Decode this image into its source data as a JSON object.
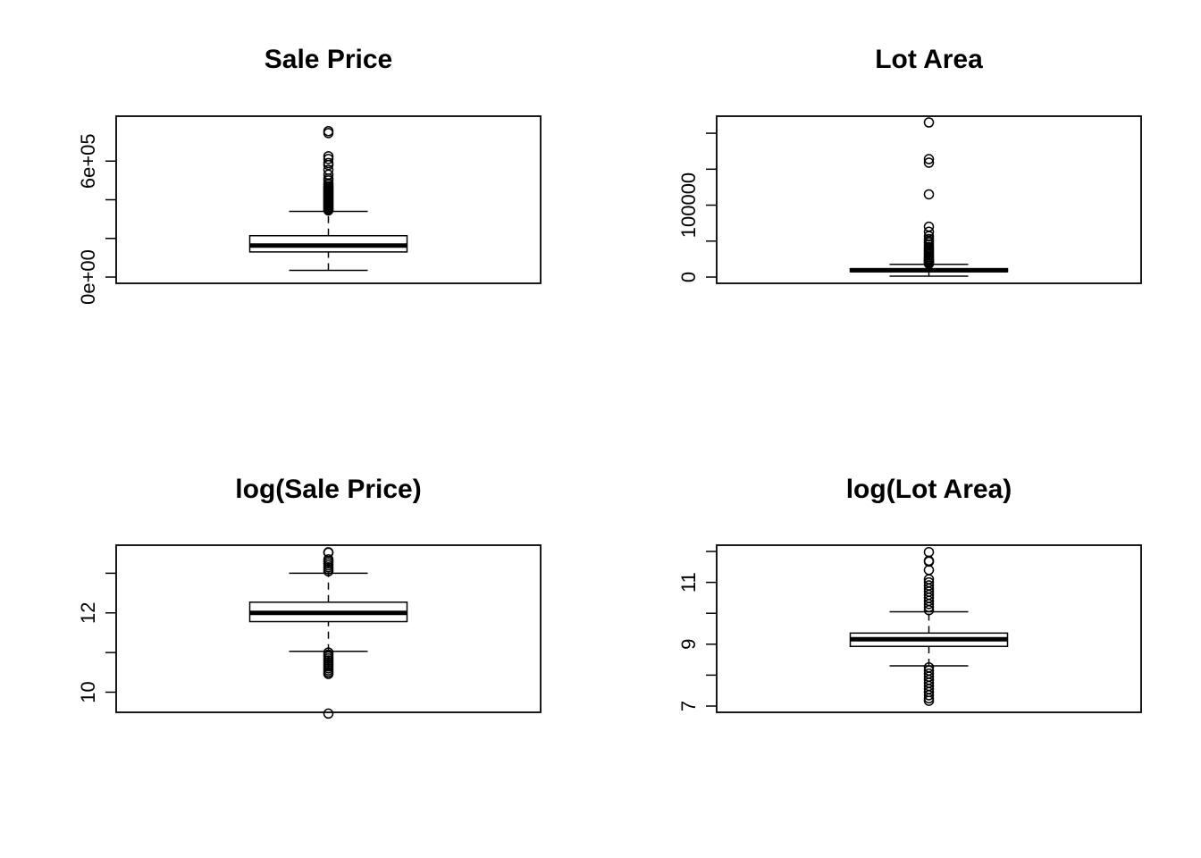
{
  "chart_data": [
    {
      "type": "boxplot",
      "title": "Sale Price",
      "ylim": [
        0,
        800000
      ],
      "yticks": [
        0,
        200000,
        400000,
        600000
      ],
      "ytick_labels": [
        "0e+00",
        "",
        "",
        "6e+05"
      ],
      "box": {
        "whisker_low": 34900,
        "q1": 130000,
        "median": 163000,
        "q3": 214000,
        "whisker_high": 340000
      },
      "outliers": [
        345000,
        350000,
        355000,
        360000,
        365000,
        370000,
        375000,
        380000,
        385000,
        390000,
        395000,
        400000,
        405000,
        410000,
        415000,
        420000,
        425000,
        430000,
        435000,
        440000,
        445000,
        450000,
        455000,
        460000,
        465000,
        470000,
        480000,
        485000,
        500000,
        510000,
        530000,
        555000,
        580000,
        590000,
        611000,
        625000,
        745000,
        755000
      ]
    },
    {
      "type": "boxplot",
      "title": "Lot Area",
      "ylim": [
        0,
        215000
      ],
      "yticks": [
        0,
        50000,
        100000,
        150000,
        200000
      ],
      "ytick_labels": [
        "0",
        "",
        "100000",
        "",
        ""
      ],
      "box": {
        "whisker_low": 1300,
        "q1": 7550,
        "median": 9480,
        "q3": 11600,
        "whisker_high": 17700
      },
      "outliers": [
        18500,
        19500,
        20500,
        21500,
        22500,
        23500,
        24500,
        26000,
        28000,
        30000,
        32000,
        34000,
        36000,
        38000,
        40000,
        42000,
        45000,
        48000,
        50000,
        53000,
        57000,
        63000,
        70000,
        115000,
        159000,
        164000,
        215000
      ]
    },
    {
      "type": "boxplot",
      "title": "log(Sale Price)",
      "ylim": [
        9.65,
        13.55
      ],
      "yticks": [
        10,
        11,
        12,
        13
      ],
      "ytick_labels": [
        "10",
        "",
        "12",
        ""
      ],
      "box": {
        "whisker_low": 11.03,
        "q1": 11.78,
        "median": 12.0,
        "q3": 12.27,
        "whisker_high": 13.0
      },
      "outliers": [
        10.46,
        10.5,
        10.55,
        10.6,
        10.65,
        10.7,
        10.75,
        10.8,
        10.85,
        10.9,
        10.95,
        11.0,
        9.46,
        13.05,
        13.1,
        13.15,
        13.2,
        13.25,
        13.3,
        13.35,
        13.52,
        13.53
      ]
    },
    {
      "type": "boxplot",
      "title": "log(Lot Area)",
      "ylim": [
        7.0,
        12.0
      ],
      "yticks": [
        7,
        8,
        9,
        10,
        11,
        12
      ],
      "ytick_labels": [
        "7",
        "",
        "9",
        "",
        "11",
        ""
      ],
      "box": {
        "whisker_low": 8.3,
        "q1": 8.93,
        "median": 9.16,
        "q3": 9.36,
        "whisker_high": 10.05
      },
      "outliers": [
        7.17,
        7.25,
        7.35,
        7.45,
        7.55,
        7.65,
        7.75,
        7.85,
        7.95,
        8.05,
        8.15,
        8.25,
        10.1,
        10.2,
        10.3,
        10.4,
        10.5,
        10.6,
        10.7,
        10.8,
        10.9,
        11.0,
        11.1,
        11.4,
        11.67,
        11.7,
        11.98
      ]
    }
  ]
}
